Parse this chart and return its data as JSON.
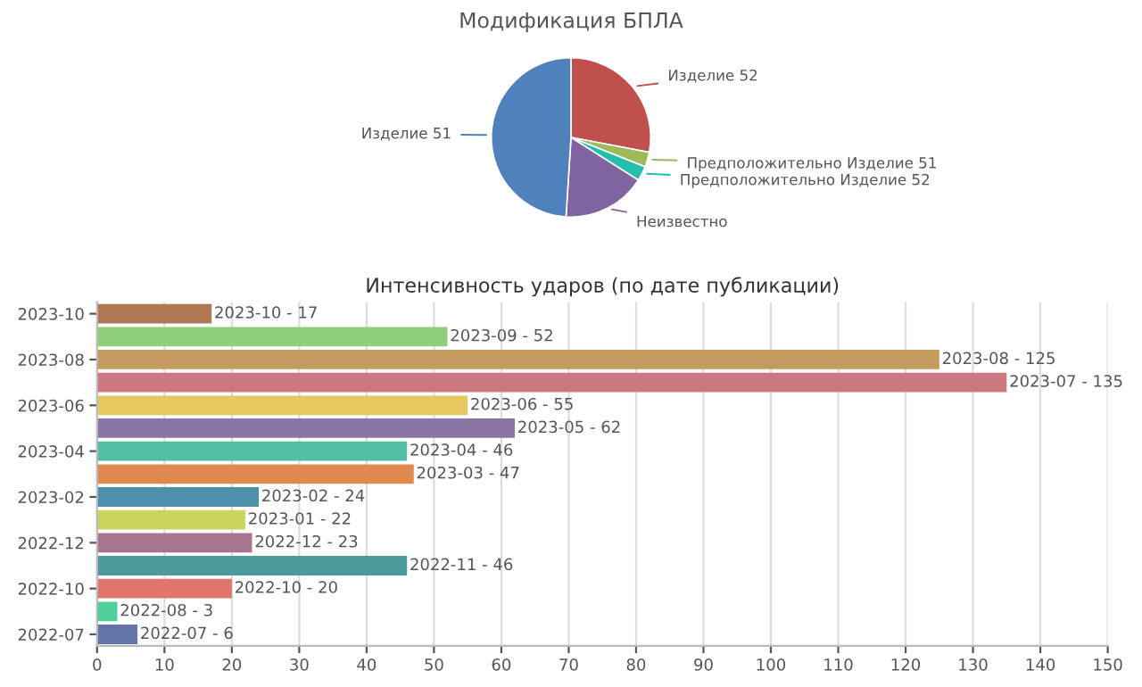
{
  "chart_data": [
    {
      "type": "pie",
      "title": "Модификация БПЛА",
      "categories": [
        "Изделие 52",
        "Предположительно Изделие 51",
        "Предположительно Изделие 52",
        "Неизвестно",
        "Изделие 51"
      ],
      "values": [
        28,
        3,
        3,
        17,
        49
      ],
      "colors": [
        "#c0504e",
        "#9bbb59",
        "#23bfaa",
        "#8064a1",
        "#4f81bc"
      ]
    },
    {
      "type": "bar",
      "orientation": "horizontal",
      "title": "Интенсивность ударов (по дате публикации)",
      "categories": [
        "2023-10",
        null,
        "2023-08",
        null,
        "2023-06",
        null,
        "2023-04",
        null,
        "2023-02",
        null,
        "2022-12",
        null,
        "2022-10",
        null,
        "2022-07"
      ],
      "values": [
        17,
        52,
        125,
        135,
        55,
        62,
        46,
        47,
        24,
        22,
        23,
        46,
        20,
        3,
        6
      ],
      "colors": [
        "#b07850",
        "#8fcf7a",
        "#c49a5e",
        "#c9797f",
        "#e3c95e",
        "#8a76a6",
        "#52bfa5",
        "#e0894e",
        "#4e8fac",
        "#c8d45a",
        "#a87590",
        "#4c9a9c",
        "#e0776a",
        "#4fcf9a",
        "#6674ac"
      ],
      "value_labels": [
        "2023-10 - 17",
        "2023-09 - 52",
        "2023-08 - 125",
        "2023-07 - 135",
        "2023-06 - 55",
        "2023-05 - 62",
        "2023-04 - 46",
        "2023-03 - 47",
        "2023-02 - 24",
        "2023-01 - 22",
        "2022-12 - 23",
        "2022-11 - 46",
        "2022-10 - 20",
        "2022-08 - 3",
        "2022-07 - 6"
      ],
      "xlim": [
        0,
        150
      ],
      "xticks": [
        0,
        10,
        20,
        30,
        40,
        50,
        60,
        70,
        80,
        90,
        100,
        110,
        120,
        130,
        140,
        150
      ],
      "grid": "x"
    }
  ]
}
